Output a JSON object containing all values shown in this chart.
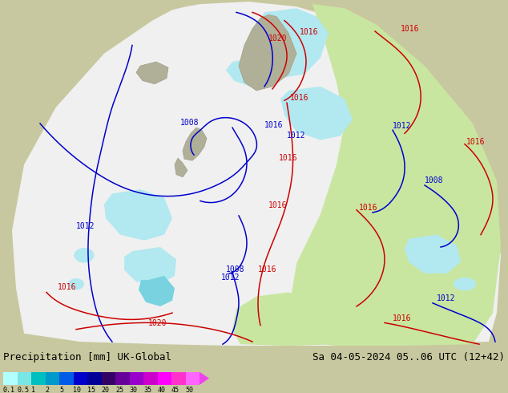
{
  "title_left": "Precipitation [mm] UK-Global",
  "title_right": "Sa 04-05-2024 05..06 UTC (12+42)",
  "colorbar_labels": [
    "0.1",
    "0.5",
    "1",
    "2",
    "5",
    "10",
    "15",
    "20",
    "25",
    "30",
    "35",
    "40",
    "45",
    "50"
  ],
  "colorbar_colors": [
    "#b2ffff",
    "#79e6e6",
    "#00bfbf",
    "#0099cc",
    "#005ce6",
    "#0000cc",
    "#000099",
    "#330066",
    "#660099",
    "#9900cc",
    "#cc00cc",
    "#ff00ff",
    "#ff33cc",
    "#ff66ff"
  ],
  "bg_color": "#c8c8a0",
  "domain_color": "#f0f0f0",
  "land_outside_color": "#c8c8a0",
  "land_inside_color": "#b4b496",
  "green_precip_color": "#c8e6a0",
  "cyan_precip_light": "#b2e8f0",
  "cyan_precip_mid": "#78d2e0",
  "cyan_precip_dark": "#40b8cc",
  "blue_isobar_color": "#0000cc",
  "red_isobar_color": "#cc0000",
  "text_color": "#000000",
  "font_size_title": 9,
  "font_size_isobar": 7,
  "font_size_label": 7
}
